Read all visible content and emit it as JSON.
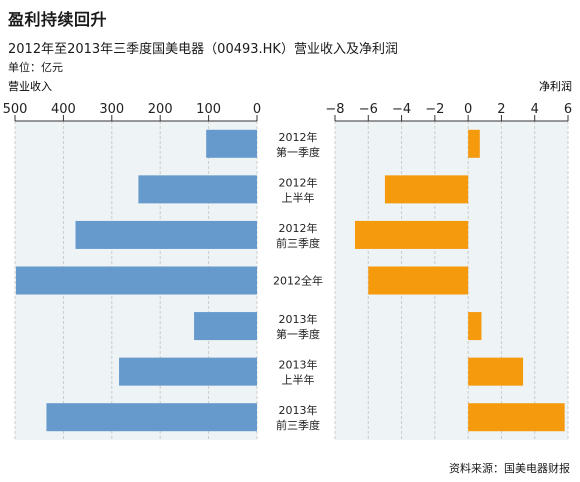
{
  "title": "盈利持续回升",
  "subtitle": "2012年至2013年三季度国美电器（00493.HK）营业收入及净利润",
  "unit": "单位：亿元",
  "source": "资料来源：国美电器财报",
  "colors": {
    "revenue": "#6699cc",
    "profit": "#f5990d",
    "grid": "#cccccc",
    "panel_bg": "#eef3f5"
  },
  "chart_data": [
    {
      "type": "bar",
      "orientation": "horizontal",
      "direction": "right-to-left",
      "axis_label": "营业收入",
      "xlim": [
        500,
        0
      ],
      "ticks": [
        "500",
        "400",
        "300",
        "200",
        "100",
        "0"
      ],
      "tick_values": [
        500,
        400,
        300,
        200,
        100,
        0
      ],
      "categories": [
        [
          "2012年",
          "第一季度"
        ],
        [
          "2012年",
          "上半年"
        ],
        [
          "2012年",
          "前三季度"
        ],
        [
          "2012全年"
        ],
        [
          "2013年",
          "第一季度"
        ],
        [
          "2013年",
          "上半年"
        ],
        [
          "2013年",
          "前三季度"
        ]
      ],
      "values": [
        105,
        245,
        375,
        498,
        130,
        285,
        435
      ]
    },
    {
      "type": "bar",
      "orientation": "horizontal",
      "axis_label": "净利润",
      "xlim": [
        -8,
        6
      ],
      "ticks": [
        "−8",
        "−6",
        "−4",
        "−2",
        "0",
        "2",
        "4",
        "6"
      ],
      "tick_values": [
        -8,
        -6,
        -4,
        -2,
        0,
        2,
        4,
        6
      ],
      "values": [
        0.7,
        -5.0,
        -6.8,
        -6.0,
        0.8,
        3.3,
        5.8
      ]
    }
  ]
}
